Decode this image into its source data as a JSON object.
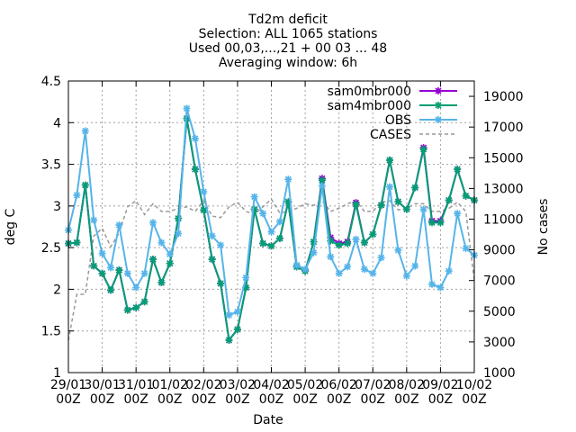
{
  "chart_data": {
    "type": "line",
    "title_lines": [
      "Td2m deficit",
      "Selection: ALL   1065 stations",
      "Used 00,03,...,21 + 00 03 ... 48",
      "Averaging window:  6h"
    ],
    "xlabel": "Date",
    "ylabel": "deg C",
    "y2label": "No cases",
    "ylim": [
      1,
      4.5
    ],
    "y2lim": [
      1000,
      20000
    ],
    "yticks": [
      "1",
      "1.5",
      "2",
      "2.5",
      "3",
      "3.5",
      "4",
      "4.5"
    ],
    "y2ticks": [
      "1000",
      "3000",
      "5000",
      "7000",
      "9000",
      "11000",
      "13000",
      "15000",
      "17000",
      "19000"
    ],
    "xticks": [
      {
        "label1": "29/01",
        "label2": "00Z"
      },
      {
        "label1": "30/01",
        "label2": "00Z"
      },
      {
        "label1": "31/01",
        "label2": "00Z"
      },
      {
        "label1": "01/02",
        "label2": "00Z"
      },
      {
        "label1": "02/02",
        "label2": "00Z"
      },
      {
        "label1": "03/02",
        "label2": "00Z"
      },
      {
        "label1": "04/02",
        "label2": "00Z"
      },
      {
        "label1": "05/02",
        "label2": "00Z"
      },
      {
        "label1": "06/02",
        "label2": "00Z"
      },
      {
        "label1": "07/02",
        "label2": "00Z"
      },
      {
        "label1": "08/02",
        "label2": "00Z"
      },
      {
        "label1": "09/02",
        "label2": "00Z"
      },
      {
        "label1": "10/02",
        "label2": "00Z"
      }
    ],
    "x_days": [
      0,
      0.25,
      0.5,
      0.75,
      1,
      1.25,
      1.5,
      1.75,
      2,
      2.25,
      2.5,
      2.75,
      3,
      3.25,
      3.5,
      3.75,
      4,
      4.25,
      4.5,
      4.75,
      5,
      5.25,
      5.5,
      5.75,
      6,
      6.25,
      6.5,
      6.75,
      7,
      7.25,
      7.5,
      7.75,
      8,
      8.25,
      8.5,
      8.75,
      9,
      9.25,
      9.5,
      9.75,
      10,
      10.25,
      10.5,
      10.75,
      11,
      11.25,
      11.5,
      11.75,
      12
    ],
    "grid": true,
    "legend_position": "top-right",
    "series": [
      {
        "name": "sam0mbr000",
        "color": "#9400d3",
        "axis": "y",
        "values": [
          2.55,
          2.56,
          3.25,
          2.28,
          2.19,
          1.99,
          2.23,
          1.75,
          1.78,
          1.85,
          2.36,
          2.08,
          2.31,
          2.85,
          4.05,
          3.44,
          2.95,
          2.36,
          2.07,
          1.39,
          1.52,
          2.02,
          2.96,
          2.55,
          2.52,
          2.61,
          3.05,
          2.27,
          2.22,
          2.57,
          3.33,
          2.62,
          2.55,
          2.57,
          3.04,
          2.56,
          2.66,
          3.01,
          3.55,
          3.05,
          2.96,
          3.22,
          3.7,
          2.82,
          2.82,
          3.07,
          3.44,
          3.12,
          3.07
        ]
      },
      {
        "name": "sam4mbr000",
        "color": "#009e73",
        "axis": "y",
        "values": [
          2.55,
          2.56,
          3.25,
          2.28,
          2.19,
          1.99,
          2.23,
          1.75,
          1.78,
          1.85,
          2.36,
          2.08,
          2.31,
          2.85,
          4.05,
          3.44,
          2.95,
          2.36,
          2.07,
          1.39,
          1.52,
          2.02,
          2.96,
          2.55,
          2.52,
          2.61,
          3.05,
          2.27,
          2.22,
          2.57,
          3.31,
          2.58,
          2.53,
          2.55,
          3.02,
          2.56,
          2.66,
          3.01,
          3.55,
          3.05,
          2.96,
          3.22,
          3.68,
          2.8,
          2.8,
          3.07,
          3.44,
          3.12,
          3.07
        ]
      },
      {
        "name": "OBS",
        "color": "#56b4e9",
        "axis": "y",
        "values": [
          2.71,
          3.13,
          3.9,
          2.83,
          2.43,
          2.26,
          2.77,
          2.19,
          2.02,
          2.19,
          2.8,
          2.56,
          2.42,
          2.67,
          4.17,
          3.81,
          3.17,
          2.64,
          2.53,
          1.69,
          1.73,
          2.14,
          3.11,
          2.91,
          2.69,
          2.81,
          3.32,
          2.29,
          2.24,
          2.44,
          3.24,
          2.39,
          2.19,
          2.27,
          2.6,
          2.24,
          2.19,
          2.38,
          3.23,
          2.47,
          2.16,
          2.28,
          2.96,
          2.06,
          2.02,
          2.22,
          2.91,
          2.49,
          2.41
        ]
      },
      {
        "name": "CASES",
        "color": "#999999",
        "axis": "y2",
        "values": [
          3100,
          6100,
          6100,
          9900,
          10400,
          9200,
          10100,
          11800,
          12200,
          11300,
          12000,
          11500,
          11500,
          11700,
          11800,
          11500,
          12200,
          11200,
          11100,
          11800,
          12100,
          11500,
          11300,
          11800,
          12300,
          11400,
          11500,
          11700,
          12000,
          11900,
          12200,
          11500,
          11700,
          12000,
          12200,
          11500,
          11500,
          12100,
          12200,
          11600,
          11700,
          12000,
          12000,
          11500,
          11500,
          11700,
          12100,
          11500,
          7000
        ]
      }
    ]
  }
}
